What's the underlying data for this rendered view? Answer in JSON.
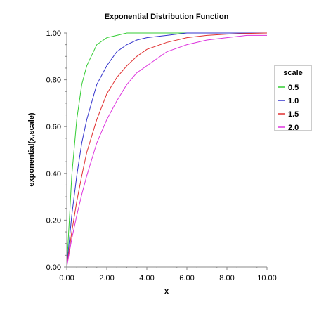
{
  "chart_data": {
    "type": "line",
    "title": "Exponential Distribution Function",
    "xlabel": "x",
    "ylabel": "exponential(x,scale)",
    "xlim": [
      0,
      10
    ],
    "ylim": [
      0,
      1
    ],
    "x_ticks": [
      "0.00",
      "2.00",
      "4.00",
      "6.00",
      "8.00",
      "10.00"
    ],
    "y_ticks": [
      "0.00",
      "0.20",
      "0.40",
      "0.60",
      "0.80",
      "1.00"
    ],
    "grid": false,
    "legend": {
      "title": "scale",
      "placement": "right"
    },
    "x": [
      0,
      0.25,
      0.5,
      0.75,
      1,
      1.5,
      2,
      2.5,
      3,
      3.5,
      4,
      5,
      6,
      7,
      8,
      9,
      10
    ],
    "series": [
      {
        "name": "0.5",
        "color": "#33cc33",
        "values": [
          0.0,
          0.39,
          0.63,
          0.78,
          0.86,
          0.95,
          0.98,
          0.99,
          1.0,
          1.0,
          1.0,
          1.0,
          1.0,
          1.0,
          1.0,
          1.0,
          1.0
        ]
      },
      {
        "name": "1.0",
        "color": "#3333cc",
        "values": [
          0.0,
          0.22,
          0.39,
          0.53,
          0.63,
          0.78,
          0.86,
          0.92,
          0.95,
          0.97,
          0.98,
          0.99,
          1.0,
          1.0,
          1.0,
          1.0,
          1.0
        ]
      },
      {
        "name": "1.5",
        "color": "#e03030",
        "values": [
          0.0,
          0.15,
          0.28,
          0.39,
          0.49,
          0.63,
          0.74,
          0.81,
          0.86,
          0.9,
          0.93,
          0.96,
          0.98,
          0.99,
          0.995,
          0.998,
          1.0
        ]
      },
      {
        "name": "2.0",
        "color": "#dd33dd",
        "values": [
          0.0,
          0.12,
          0.22,
          0.31,
          0.39,
          0.53,
          0.63,
          0.71,
          0.78,
          0.83,
          0.86,
          0.92,
          0.95,
          0.97,
          0.98,
          0.99,
          0.99
        ]
      }
    ]
  }
}
